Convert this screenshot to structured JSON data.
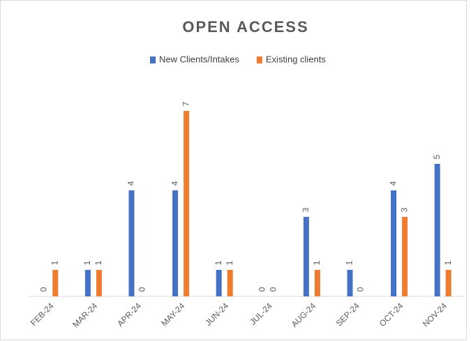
{
  "chart_data": {
    "type": "bar",
    "title": "OPEN ACCESS",
    "categories": [
      "FEB-24",
      "MAR-24",
      "APR-24",
      "MAY-24",
      "JUN-24",
      "JUL-24",
      "AUG-24",
      "SEP-24",
      "OCT-24",
      "NOV-24"
    ],
    "series": [
      {
        "name": "New Clients/Intakes",
        "color": "#4472c4",
        "values": [
          0,
          1,
          4,
          4,
          1,
          0,
          3,
          1,
          4,
          5
        ]
      },
      {
        "name": "Existing clients",
        "color": "#ed7d31",
        "values": [
          1,
          1,
          0,
          7,
          1,
          0,
          1,
          0,
          3,
          1
        ]
      }
    ],
    "ylim": [
      0,
      8
    ],
    "legend": "top"
  }
}
